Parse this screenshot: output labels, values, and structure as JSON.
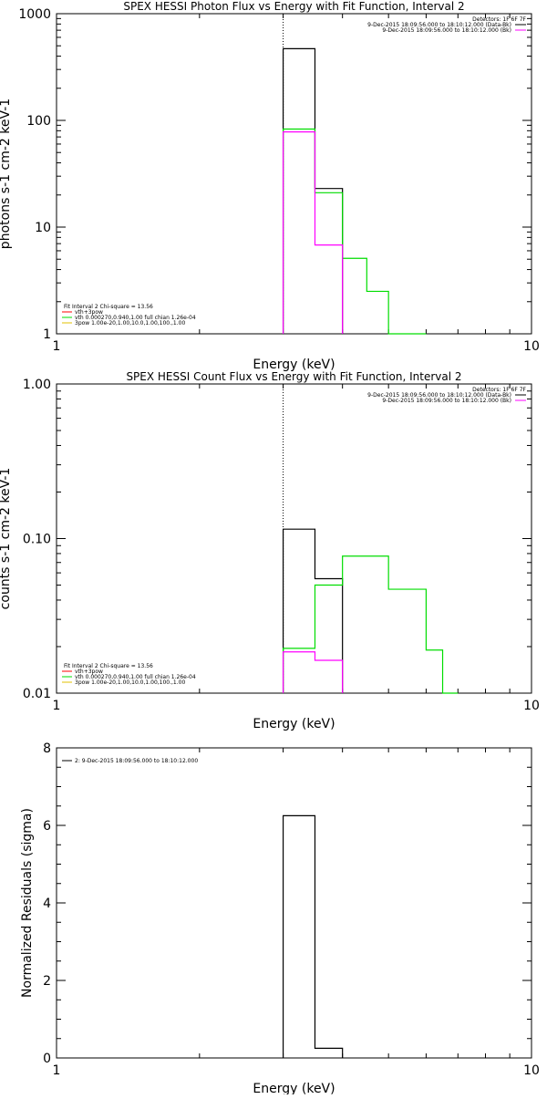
{
  "chart_data": [
    {
      "type": "line",
      "title": "SPEX HESSI Photon Flux vs Energy with Fit Function, Interval 2",
      "xlabel": "Energy (keV)",
      "ylabel": "photons s-1 cm-2 keV-1",
      "xscale": "log",
      "yscale": "log",
      "xlim": [
        1,
        10
      ],
      "ylim": [
        1,
        1000
      ],
      "xticklabels": [
        {
          "v": 1,
          "t": "1"
        },
        {
          "v": 10,
          "t": "10"
        }
      ],
      "yticklabels": [
        {
          "v": 1,
          "t": "1"
        },
        {
          "v": 10,
          "t": "10"
        },
        {
          "v": 100,
          "t": "100"
        },
        {
          "v": 1000,
          "t": "1000"
        }
      ],
      "vline_x": 3.0,
      "header_right": [
        {
          "text": "Detectors: 1F 6F 7F",
          "color": null
        },
        {
          "text": "9-Dec-2015 18:09:56.000 to 18:10:12.000 (Data-Bk)",
          "color": "#000000"
        },
        {
          "text": "9-Dec-2015 18:09:56.000 to 18:10:12.000 (Bk)",
          "color": "#ff00ff"
        }
      ],
      "legend": [
        {
          "text": "Fit Interval 2   Chi-square = 13.56",
          "color": null
        },
        {
          "text": "vth+3pow",
          "color": "#ff0000"
        },
        {
          "text": "vth 0.000270,0.940,1.00  full chian 1.26e-04",
          "color": "#00dd00"
        },
        {
          "text": "3pow 1.00e-20,1.00,10.0,1.00,100.,1.00",
          "color": "#e0c000"
        }
      ],
      "series": [
        {
          "color": "#000000",
          "edges": [
            3.0,
            3.5,
            4.0
          ],
          "values": [
            470,
            23
          ]
        },
        {
          "color": "#00dd00",
          "edges": [
            3.0,
            3.5,
            4.0,
            4.5,
            5.0,
            6.0
          ],
          "values": [
            83,
            21,
            5.1,
            2.5,
            1
          ]
        },
        {
          "color": "#ff00ff",
          "edges": [
            3.0,
            3.5,
            4.0
          ],
          "values": [
            78,
            6.8
          ]
        }
      ]
    },
    {
      "type": "line",
      "title": "SPEX HESSI Count Flux vs Energy with Fit Function, Interval 2",
      "xlabel": "Energy (keV)",
      "ylabel": "counts s-1 cm-2 keV-1",
      "xscale": "log",
      "yscale": "log",
      "xlim": [
        1,
        10
      ],
      "ylim": [
        0.01,
        1.0
      ],
      "xticklabels": [
        {
          "v": 1,
          "t": "1"
        },
        {
          "v": 10,
          "t": "10"
        }
      ],
      "yticklabels": [
        {
          "v": 0.01,
          "t": "0.01"
        },
        {
          "v": 0.1,
          "t": "0.10"
        },
        {
          "v": 1,
          "t": "1.00"
        }
      ],
      "vline_x": 3.0,
      "header_right": [
        {
          "text": "Detectors: 1F 6F 7F",
          "color": null
        },
        {
          "text": "9-Dec-2015 18:09:56.000 to 18:10:12.000 (Data-Bk)",
          "color": "#000000"
        },
        {
          "text": "9-Dec-2015 18:09:56.000 to 18:10:12.000 (Bk)",
          "color": "#ff00ff"
        }
      ],
      "legend": [
        {
          "text": "Fit Interval 2   Chi-square = 13.56",
          "color": null
        },
        {
          "text": "vth+3pow",
          "color": "#ff0000"
        },
        {
          "text": "vth 0.000270,0.940,1.00  full chian 1.26e-04",
          "color": "#00dd00"
        },
        {
          "text": "3pow 1.00e-20,1.00,10.0,1.00,100.,1.00",
          "color": "#e0c000"
        }
      ],
      "series": [
        {
          "color": "#000000",
          "edges": [
            3.0,
            3.5,
            4.0
          ],
          "values": [
            0.115,
            0.055
          ]
        },
        {
          "color": "#00dd00",
          "edges": [
            3.0,
            3.5,
            4.0,
            5.0,
            6.0,
            6.5,
            7.0
          ],
          "values": [
            0.0195,
            0.05,
            0.077,
            0.047,
            0.019,
            0.01
          ]
        },
        {
          "color": "#ff00ff",
          "edges": [
            3.0,
            3.5,
            4.0
          ],
          "values": [
            0.0185,
            0.0163
          ]
        }
      ]
    },
    {
      "type": "line",
      "title": "",
      "xlabel": "Energy (keV)",
      "ylabel": "Normalized Residuals (sigma)",
      "xscale": "log",
      "yscale": "linear",
      "xlim": [
        1,
        10
      ],
      "ylim": [
        0,
        8
      ],
      "xticklabels": [
        {
          "v": 1,
          "t": "1"
        },
        {
          "v": 10,
          "t": "10"
        }
      ],
      "yticklabels": [
        {
          "v": 0,
          "t": "0"
        },
        {
          "v": 2,
          "t": "2"
        },
        {
          "v": 4,
          "t": "4"
        },
        {
          "v": 6,
          "t": "6"
        },
        {
          "v": 8,
          "t": "8"
        }
      ],
      "vline_x": null,
      "header_right": [],
      "legend": [
        {
          "text": "2:  9-Dec-2015 18:09:56.000 to 18:10:12.000",
          "color": "#000000"
        }
      ],
      "series": [
        {
          "color": "#000000",
          "edges": [
            3.0,
            3.5,
            4.0
          ],
          "values": [
            6.25,
            0.25
          ]
        }
      ]
    }
  ]
}
